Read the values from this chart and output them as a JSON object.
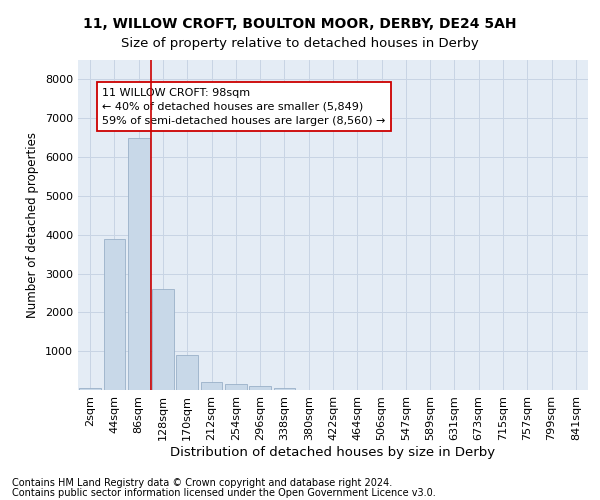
{
  "title1": "11, WILLOW CROFT, BOULTON MOOR, DERBY, DE24 5AH",
  "title2": "Size of property relative to detached houses in Derby",
  "xlabel": "Distribution of detached houses by size in Derby",
  "ylabel": "Number of detached properties",
  "footnote1": "Contains HM Land Registry data © Crown copyright and database right 2024.",
  "footnote2": "Contains public sector information licensed under the Open Government Licence v3.0.",
  "bin_labels": [
    "2sqm",
    "44sqm",
    "86sqm",
    "128sqm",
    "170sqm",
    "212sqm",
    "254sqm",
    "296sqm",
    "338sqm",
    "380sqm",
    "422sqm",
    "464sqm",
    "506sqm",
    "547sqm",
    "589sqm",
    "631sqm",
    "673sqm",
    "715sqm",
    "757sqm",
    "799sqm",
    "841sqm"
  ],
  "bar_values": [
    50,
    3900,
    6500,
    2600,
    900,
    200,
    150,
    100,
    50,
    0,
    0,
    0,
    0,
    0,
    0,
    0,
    0,
    0,
    0,
    0,
    0
  ],
  "bar_color": "#c8d8e8",
  "bar_edge_color": "#9ab0c8",
  "grid_color": "#c8d4e4",
  "background_color": "#e4ecf5",
  "annotation_text": "11 WILLOW CROFT: 98sqm\n← 40% of detached houses are smaller (5,849)\n59% of semi-detached houses are larger (8,560) →",
  "annotation_box_color": "#ffffff",
  "annotation_box_edge_color": "#cc0000",
  "vline_x": 2.5,
  "vline_color": "#cc0000",
  "ylim": [
    0,
    8500
  ],
  "yticks": [
    0,
    1000,
    2000,
    3000,
    4000,
    5000,
    6000,
    7000,
    8000
  ],
  "title1_fontsize": 10,
  "title2_fontsize": 9.5,
  "xlabel_fontsize": 9.5,
  "ylabel_fontsize": 8.5,
  "tick_fontsize": 8,
  "annot_fontsize": 8,
  "footnote_fontsize": 7
}
